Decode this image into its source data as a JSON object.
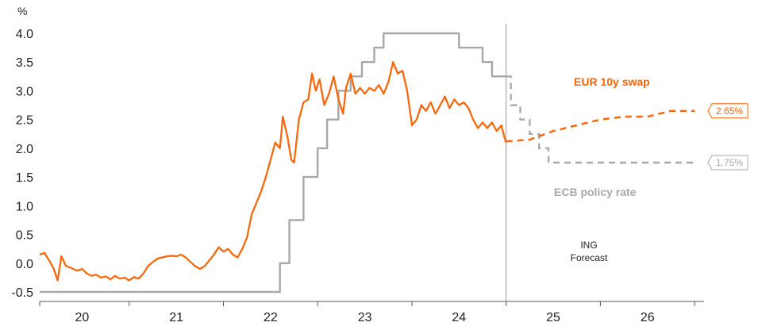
{
  "chart_data": {
    "type": "line",
    "unit_label": "%",
    "ylim": [
      -0.5,
      4.0
    ],
    "y_ticks": [
      "-0.5",
      "0.0",
      "0.5",
      "1.0",
      "1.5",
      "2.0",
      "2.5",
      "3.0",
      "3.5",
      "4.0"
    ],
    "xlim": [
      2019.55,
      2026.6
    ],
    "x_tick_labels": [
      {
        "x": 2020.0,
        "label": "20"
      },
      {
        "x": 2021.0,
        "label": "21"
      },
      {
        "x": 2022.0,
        "label": "22"
      },
      {
        "x": 2023.0,
        "label": "23"
      },
      {
        "x": 2024.0,
        "label": "24"
      },
      {
        "x": 2025.0,
        "label": "25"
      },
      {
        "x": 2026.0,
        "label": "26"
      }
    ],
    "x_tick_marks": [
      2019.55,
      2020.5,
      2021.5,
      2022.5,
      2023.5,
      2024.5,
      2025.5,
      2026.5
    ],
    "forecast_start": 2024.5,
    "series": [
      {
        "name": "EUR 10y swap",
        "color": "#ff6200",
        "label_color": "#ff6200",
        "historical": [
          [
            2019.55,
            0.15
          ],
          [
            2019.6,
            0.18
          ],
          [
            2019.65,
            0.05
          ],
          [
            2019.7,
            -0.1
          ],
          [
            2019.74,
            -0.3
          ],
          [
            2019.78,
            0.12
          ],
          [
            2019.83,
            -0.05
          ],
          [
            2019.88,
            -0.08
          ],
          [
            2019.95,
            -0.13
          ],
          [
            2020.0,
            -0.1
          ],
          [
            2020.05,
            -0.18
          ],
          [
            2020.1,
            -0.22
          ],
          [
            2020.15,
            -0.2
          ],
          [
            2020.2,
            -0.25
          ],
          [
            2020.25,
            -0.23
          ],
          [
            2020.3,
            -0.28
          ],
          [
            2020.35,
            -0.22
          ],
          [
            2020.4,
            -0.27
          ],
          [
            2020.45,
            -0.25
          ],
          [
            2020.5,
            -0.3
          ],
          [
            2020.55,
            -0.24
          ],
          [
            2020.6,
            -0.27
          ],
          [
            2020.65,
            -0.18
          ],
          [
            2020.7,
            -0.05
          ],
          [
            2020.75,
            0.02
          ],
          [
            2020.8,
            0.08
          ],
          [
            2020.85,
            0.1
          ],
          [
            2020.9,
            0.12
          ],
          [
            2020.95,
            0.13
          ],
          [
            2021.0,
            0.12
          ],
          [
            2021.05,
            0.15
          ],
          [
            2021.1,
            0.1
          ],
          [
            2021.15,
            0.02
          ],
          [
            2021.2,
            -0.05
          ],
          [
            2021.25,
            -0.1
          ],
          [
            2021.3,
            -0.05
          ],
          [
            2021.35,
            0.05
          ],
          [
            2021.4,
            0.15
          ],
          [
            2021.45,
            0.28
          ],
          [
            2021.5,
            0.2
          ],
          [
            2021.55,
            0.25
          ],
          [
            2021.6,
            0.15
          ],
          [
            2021.65,
            0.1
          ],
          [
            2021.7,
            0.25
          ],
          [
            2021.75,
            0.45
          ],
          [
            2021.8,
            0.85
          ],
          [
            2021.85,
            1.05
          ],
          [
            2021.9,
            1.25
          ],
          [
            2021.95,
            1.5
          ],
          [
            2022.0,
            1.8
          ],
          [
            2022.05,
            2.1
          ],
          [
            2022.1,
            2.0
          ],
          [
            2022.13,
            2.55
          ],
          [
            2022.18,
            2.2
          ],
          [
            2022.22,
            1.8
          ],
          [
            2022.25,
            1.75
          ],
          [
            2022.3,
            2.5
          ],
          [
            2022.35,
            2.8
          ],
          [
            2022.4,
            2.85
          ],
          [
            2022.44,
            3.3
          ],
          [
            2022.48,
            3.0
          ],
          [
            2022.52,
            3.2
          ],
          [
            2022.57,
            2.75
          ],
          [
            2022.62,
            2.95
          ],
          [
            2022.67,
            3.25
          ],
          [
            2022.72,
            2.85
          ],
          [
            2022.77,
            2.6
          ],
          [
            2022.8,
            3.05
          ],
          [
            2022.85,
            3.3
          ],
          [
            2022.9,
            2.95
          ],
          [
            2022.95,
            3.05
          ],
          [
            2023.0,
            2.95
          ],
          [
            2023.05,
            3.05
          ],
          [
            2023.1,
            3.0
          ],
          [
            2023.15,
            3.1
          ],
          [
            2023.2,
            2.95
          ],
          [
            2023.25,
            3.15
          ],
          [
            2023.3,
            3.5
          ],
          [
            2023.35,
            3.3
          ],
          [
            2023.4,
            3.35
          ],
          [
            2023.45,
            3.0
          ],
          [
            2023.5,
            2.4
          ],
          [
            2023.55,
            2.5
          ],
          [
            2023.6,
            2.75
          ],
          [
            2023.65,
            2.65
          ],
          [
            2023.7,
            2.8
          ],
          [
            2023.75,
            2.6
          ],
          [
            2023.8,
            2.75
          ],
          [
            2023.85,
            2.9
          ],
          [
            2023.9,
            2.7
          ],
          [
            2023.95,
            2.85
          ],
          [
            2024.0,
            2.75
          ],
          [
            2024.05,
            2.8
          ],
          [
            2024.1,
            2.7
          ],
          [
            2024.15,
            2.5
          ],
          [
            2024.2,
            2.35
          ],
          [
            2024.25,
            2.45
          ],
          [
            2024.3,
            2.35
          ],
          [
            2024.35,
            2.45
          ],
          [
            2024.4,
            2.3
          ],
          [
            2024.45,
            2.4
          ],
          [
            2024.48,
            2.2
          ],
          [
            2024.5,
            2.1
          ]
        ],
        "forecast": [
          [
            2024.5,
            2.12
          ],
          [
            2024.75,
            2.15
          ],
          [
            2025.0,
            2.3
          ],
          [
            2025.25,
            2.4
          ],
          [
            2025.5,
            2.5
          ],
          [
            2025.75,
            2.55
          ],
          [
            2026.0,
            2.55
          ],
          [
            2026.25,
            2.65
          ],
          [
            2026.5,
            2.65
          ]
        ],
        "end_label": "2.65%"
      },
      {
        "name": "ECB policy rate",
        "color": "#a8a8a8",
        "label_color": "#a8a8a8",
        "historical": [
          [
            2019.55,
            -0.5
          ],
          [
            2022.1,
            -0.5
          ],
          [
            2022.1,
            0.0
          ],
          [
            2022.2,
            0.0
          ],
          [
            2022.2,
            0.75
          ],
          [
            2022.35,
            0.75
          ],
          [
            2022.35,
            1.5
          ],
          [
            2022.5,
            1.5
          ],
          [
            2022.5,
            2.0
          ],
          [
            2022.6,
            2.0
          ],
          [
            2022.6,
            2.5
          ],
          [
            2022.72,
            2.5
          ],
          [
            2022.72,
            3.0
          ],
          [
            2022.85,
            3.0
          ],
          [
            2022.85,
            3.25
          ],
          [
            2022.97,
            3.25
          ],
          [
            2022.97,
            3.5
          ],
          [
            2023.1,
            3.5
          ],
          [
            2023.1,
            3.75
          ],
          [
            2023.2,
            3.75
          ],
          [
            2023.2,
            4.0
          ],
          [
            2024.0,
            4.0
          ],
          [
            2024.0,
            3.75
          ],
          [
            2024.25,
            3.75
          ],
          [
            2024.25,
            3.5
          ],
          [
            2024.35,
            3.5
          ],
          [
            2024.35,
            3.25
          ],
          [
            2024.5,
            3.25
          ]
        ],
        "forecast": [
          [
            2024.5,
            3.25
          ],
          [
            2024.55,
            3.25
          ],
          [
            2024.55,
            2.75
          ],
          [
            2024.65,
            2.75
          ],
          [
            2024.65,
            2.5
          ],
          [
            2024.75,
            2.5
          ],
          [
            2024.75,
            2.25
          ],
          [
            2024.85,
            2.25
          ],
          [
            2024.85,
            2.0
          ],
          [
            2024.95,
            2.0
          ],
          [
            2024.95,
            1.75
          ],
          [
            2026.5,
            1.75
          ]
        ],
        "end_label": "1.75%"
      }
    ],
    "annotations": {
      "forecast_label_line1": "ING",
      "forecast_label_line2": "Forecast"
    }
  }
}
